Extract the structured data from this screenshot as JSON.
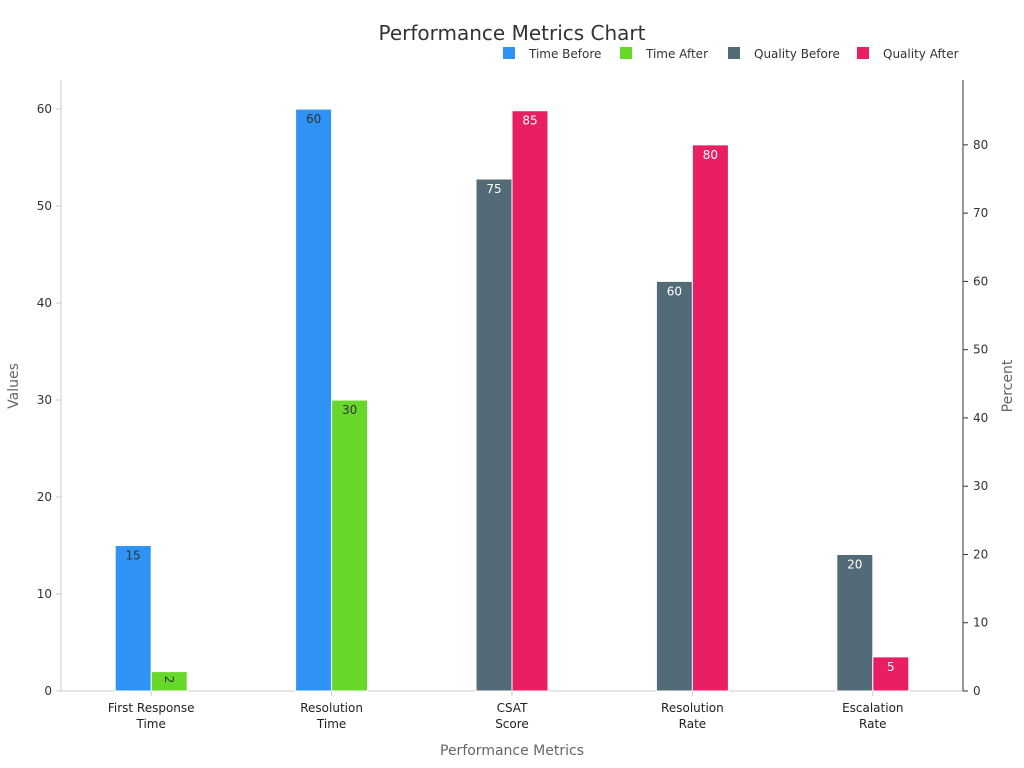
{
  "chart_data": {
    "type": "bar",
    "title": "Performance Metrics Chart",
    "xlabel": "Performance Metrics",
    "ylabel": "Values",
    "y2label": "Percent",
    "categories": [
      [
        "First Response",
        "Time"
      ],
      [
        "Resolution",
        "Time"
      ],
      [
        "CSAT",
        "Score"
      ],
      [
        "Resolution",
        "Rate"
      ],
      [
        "Escalation",
        "Rate"
      ]
    ],
    "ylim": [
      0,
      63
    ],
    "y2lim": [
      0,
      89.5
    ],
    "yticks": [
      0,
      10,
      20,
      30,
      40,
      50,
      60
    ],
    "y2ticks": [
      0,
      10,
      20,
      30,
      40,
      50,
      60,
      70,
      80
    ],
    "legend_position": "top-right",
    "series": [
      {
        "name": "Time Before",
        "axis": "left",
        "color": "#2e93f5",
        "label_color": "#333333",
        "values": [
          15,
          60,
          null,
          null,
          null
        ]
      },
      {
        "name": "Time After",
        "axis": "left",
        "color": "#66d82a",
        "label_color": "#333333",
        "values": [
          2,
          30,
          null,
          null,
          null
        ]
      },
      {
        "name": "Quality Before",
        "axis": "right",
        "color": "#526b76",
        "label_color": "#ffffff",
        "values": [
          null,
          null,
          75,
          60,
          20
        ]
      },
      {
        "name": "Quality After",
        "axis": "right",
        "color": "#e91e63",
        "label_color": "#ffffff",
        "values": [
          null,
          null,
          85,
          80,
          5
        ]
      }
    ]
  }
}
